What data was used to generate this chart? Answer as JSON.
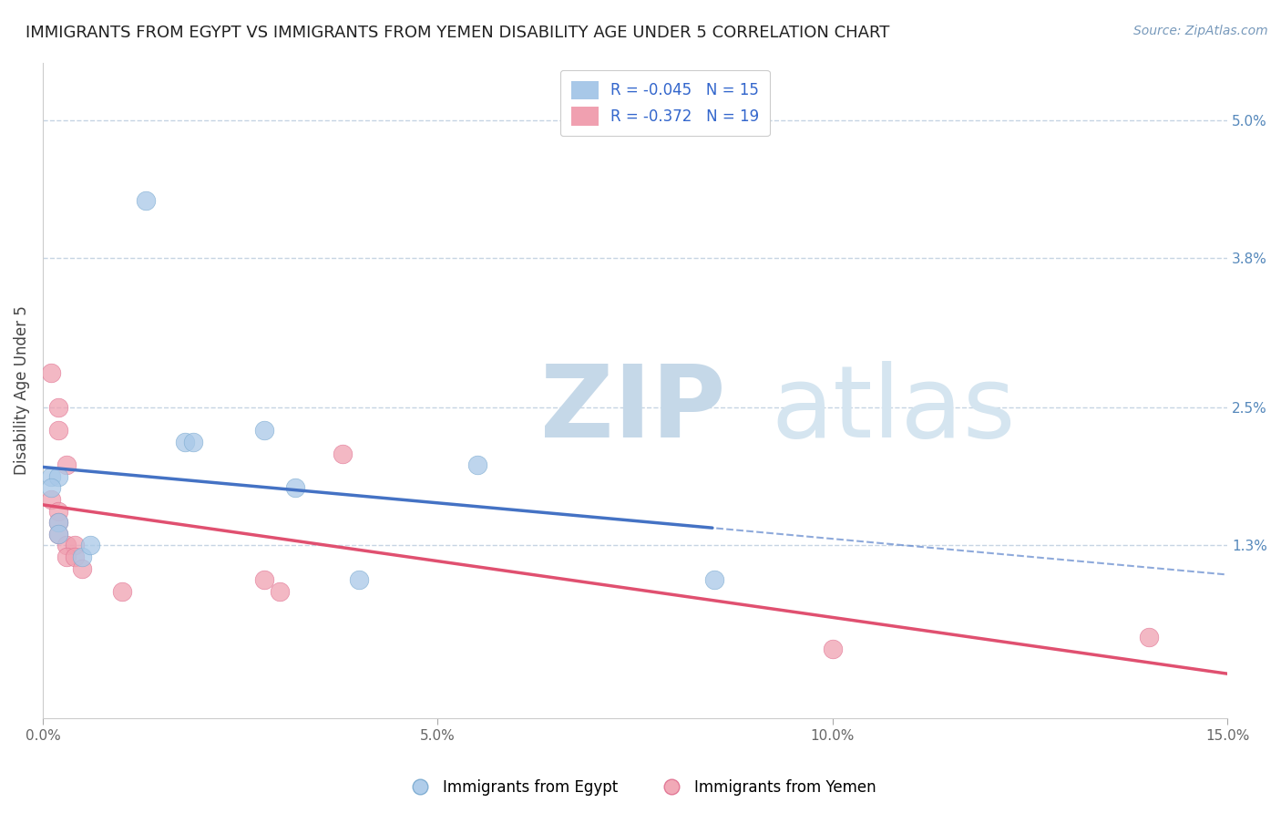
{
  "title": "IMMIGRANTS FROM EGYPT VS IMMIGRANTS FROM YEMEN DISABILITY AGE UNDER 5 CORRELATION CHART",
  "source": "Source: ZipAtlas.com",
  "ylabel": "Disability Age Under 5",
  "xlim": [
    0.0,
    0.15
  ],
  "ylim": [
    -0.002,
    0.055
  ],
  "egypt_color": "#a8c8e8",
  "egypt_edge_color": "#7aaad0",
  "yemen_color": "#f0a0b0",
  "yemen_edge_color": "#e07090",
  "egypt_line_color": "#4472c4",
  "yemen_line_color": "#e05070",
  "egypt_scatter": [
    [
      0.013,
      0.043
    ],
    [
      0.001,
      0.019
    ],
    [
      0.002,
      0.019
    ],
    [
      0.018,
      0.022
    ],
    [
      0.019,
      0.022
    ],
    [
      0.005,
      0.012
    ],
    [
      0.006,
      0.013
    ],
    [
      0.028,
      0.023
    ],
    [
      0.032,
      0.018
    ],
    [
      0.055,
      0.02
    ],
    [
      0.001,
      0.018
    ],
    [
      0.002,
      0.015
    ],
    [
      0.002,
      0.014
    ],
    [
      0.04,
      0.01
    ],
    [
      0.085,
      0.01
    ]
  ],
  "yemen_scatter": [
    [
      0.001,
      0.028
    ],
    [
      0.002,
      0.025
    ],
    [
      0.002,
      0.023
    ],
    [
      0.003,
      0.02
    ],
    [
      0.001,
      0.017
    ],
    [
      0.002,
      0.016
    ],
    [
      0.002,
      0.015
    ],
    [
      0.002,
      0.014
    ],
    [
      0.003,
      0.013
    ],
    [
      0.004,
      0.013
    ],
    [
      0.003,
      0.012
    ],
    [
      0.004,
      0.012
    ],
    [
      0.005,
      0.011
    ],
    [
      0.01,
      0.009
    ],
    [
      0.028,
      0.01
    ],
    [
      0.03,
      0.009
    ],
    [
      0.038,
      0.021
    ],
    [
      0.1,
      0.004
    ],
    [
      0.14,
      0.005
    ]
  ],
  "egypt_r": -0.045,
  "egypt_n": 15,
  "yemen_r": -0.372,
  "yemen_n": 19,
  "background_color": "#ffffff",
  "grid_color": "#c0d0e0",
  "title_fontsize": 13,
  "legend_label_egypt": "Immigrants from Egypt",
  "legend_label_yemen": "Immigrants from Yemen",
  "yticks_right": [
    0.013,
    0.025,
    0.038,
    0.05
  ],
  "ytick_labels_right": [
    "1.3%",
    "2.5%",
    "3.8%",
    "5.0%"
  ],
  "xticks": [
    0.0,
    0.05,
    0.1,
    0.15
  ],
  "xtick_labels": [
    "0.0%",
    "5.0%",
    "10.0%",
    "15.0%"
  ]
}
